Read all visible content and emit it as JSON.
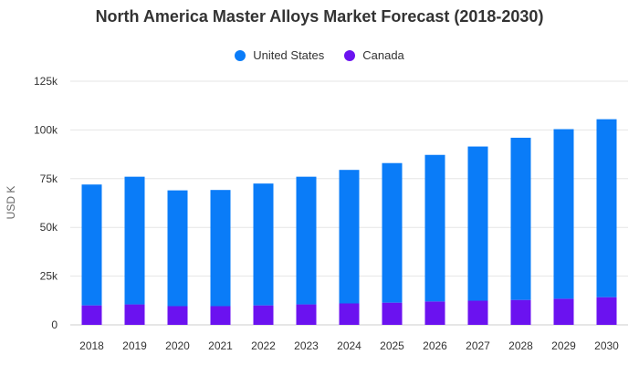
{
  "title": "North America Master Alloys Market Forecast (2018-2030)",
  "legend": {
    "items": [
      {
        "label": "United States",
        "color": "#0a7cf8"
      },
      {
        "label": "Canada",
        "color": "#6b12f0"
      }
    ]
  },
  "chart_data": {
    "type": "bar",
    "stacked": true,
    "title": "North America Master Alloys Market Forecast (2018-2030)",
    "xlabel": "",
    "ylabel": "USD K",
    "ylim": [
      0,
      125000
    ],
    "y_ticks": [
      0,
      25000,
      50000,
      75000,
      100000,
      125000
    ],
    "y_tick_labels": [
      "0",
      "25k",
      "50k",
      "75k",
      "100k",
      "125k"
    ],
    "grid": true,
    "legend_position": "top-center",
    "categories": [
      "2018",
      "2019",
      "2020",
      "2021",
      "2022",
      "2023",
      "2024",
      "2025",
      "2026",
      "2027",
      "2028",
      "2029",
      "2030"
    ],
    "series": [
      {
        "name": "Canada",
        "color": "#6b12f0",
        "values": [
          10000,
          10500,
          9600,
          9600,
          10000,
          10500,
          11000,
          11400,
          12000,
          12400,
          12800,
          13400,
          14200
        ]
      },
      {
        "name": "United States",
        "color": "#0a7cf8",
        "values": [
          62000,
          65500,
          59400,
          59600,
          62500,
          65500,
          68500,
          71600,
          75200,
          79100,
          83200,
          87000,
          91300
        ]
      }
    ]
  }
}
